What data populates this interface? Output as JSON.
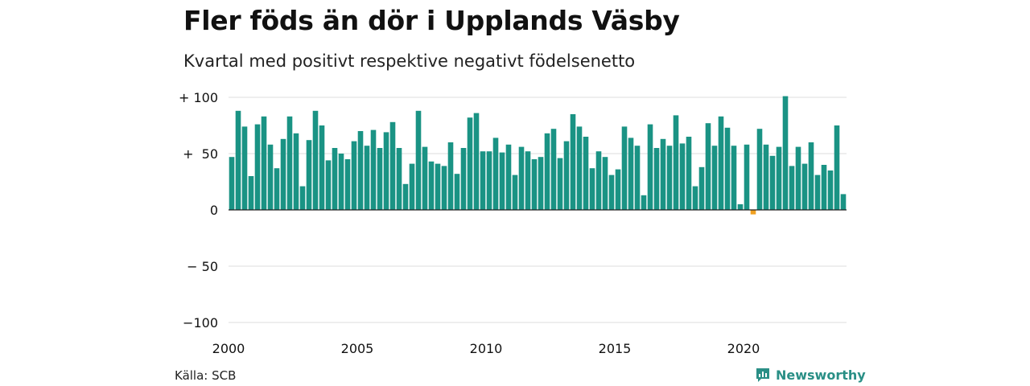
{
  "title": "Fler föds än dör i Upplands Väsby",
  "subtitle": "Kvartal med positivt respektive negativt födelsenetto",
  "source": "Källa: SCB",
  "brand": {
    "name": "Newsworthy",
    "icon": "newsworthy-chart-bubble-icon",
    "color": "#2a8f86"
  },
  "colors": {
    "positive": "#1a9384",
    "negative": "#f0a020",
    "grid": "#e3e3e3",
    "zero_line": "#222222"
  },
  "chart_data": {
    "type": "bar",
    "title": "Fler föds än dör i Upplands Väsby",
    "subtitle": "Kvartal med positivt respektive negativt födelsenetto",
    "xlabel": "",
    "ylabel": "",
    "ylim": [
      -100,
      100
    ],
    "y_ticks": [
      {
        "value": 100,
        "label": "+ 100"
      },
      {
        "value": 50,
        "label": "+  50"
      },
      {
        "value": 0,
        "label": "0"
      },
      {
        "value": -50,
        "label": "− 50"
      },
      {
        "value": -100,
        "label": "−100"
      }
    ],
    "x_ticks": [
      "2000",
      "2005",
      "2010",
      "2015",
      "2020"
    ],
    "start": "2000 Q1",
    "frequency": "quarter",
    "grid": true,
    "legend": "none",
    "values": [
      47,
      88,
      74,
      30,
      76,
      83,
      58,
      37,
      63,
      83,
      68,
      21,
      62,
      88,
      75,
      44,
      55,
      50,
      45,
      61,
      70,
      57,
      71,
      55,
      69,
      78,
      55,
      23,
      41,
      88,
      56,
      43,
      41,
      39,
      60,
      32,
      55,
      82,
      86,
      52,
      52,
      64,
      51,
      58,
      31,
      56,
      52,
      45,
      47,
      68,
      72,
      46,
      61,
      85,
      74,
      65,
      37,
      52,
      47,
      31,
      36,
      74,
      64,
      57,
      13,
      76,
      55,
      63,
      57,
      84,
      59,
      65,
      21,
      38,
      77,
      57,
      83,
      73,
      57,
      5,
      58,
      -4,
      72,
      58,
      48,
      56,
      101,
      39,
      56,
      41,
      60,
      31,
      40,
      35,
      75,
      14
    ]
  }
}
